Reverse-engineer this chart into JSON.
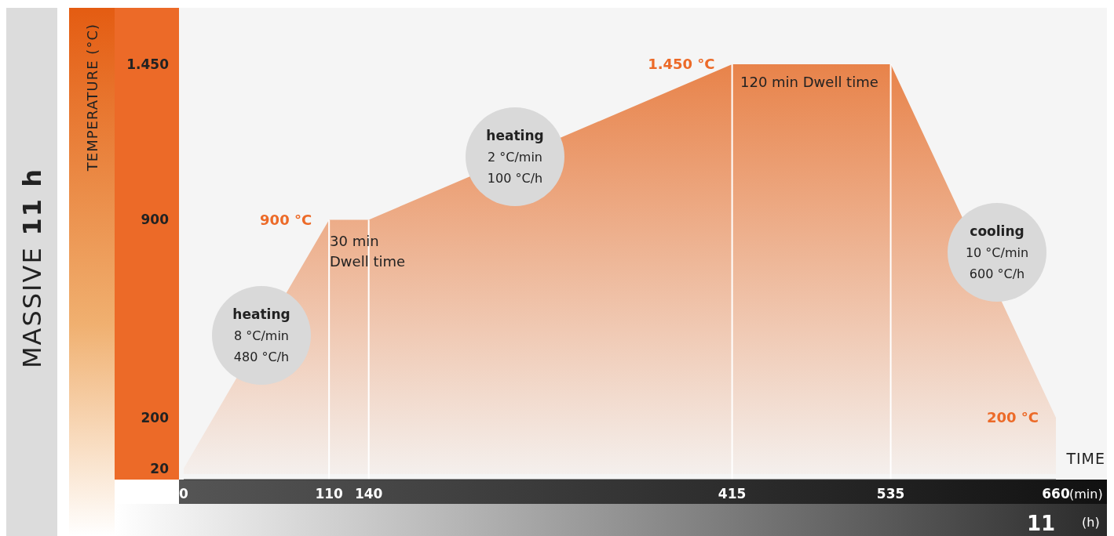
{
  "chart_data": {
    "type": "area",
    "title": "MASSIVE",
    "subtitle": "11 h",
    "ylabel": "TEMPERATURE (°C)",
    "xlabel": "TIME",
    "x": [
      0,
      110,
      140,
      415,
      535,
      660
    ],
    "series": [
      {
        "color": "#e8834a",
        "values": [
          20,
          900,
          900,
          1450,
          1450,
          200
        ]
      }
    ],
    "xlim": [
      0,
      660
    ],
    "xticks": [
      0,
      110,
      140,
      415,
      535,
      660
    ],
    "ylim": [
      0,
      1650
    ],
    "yticks": [
      20,
      200,
      900,
      {
        "value": 1450,
        "label": "1.450"
      }
    ],
    "ref_lines": [
      {
        "axis": "x",
        "value": 110,
        "color": "#ffffff"
      },
      {
        "axis": "x",
        "value": 140,
        "color": "#ffffff"
      },
      {
        "axis": "x",
        "value": 415,
        "color": "#ffffff"
      },
      {
        "axis": "x",
        "value": 535,
        "color": "#ffffff"
      }
    ],
    "annotations": [
      "(min)",
      "11",
      "(h)",
      "30 min\nDwell time",
      "120 min Dwell time",
      "heating\n8 °C/min\n480 °C/h",
      "heating\n2 °C/min\n100 °C/h",
      "cooling\n10 °C/min\n600 °C/h",
      {
        "text": "900 °C",
        "x": 110,
        "y": 900
      },
      {
        "text": "1.450 °C",
        "x": 415,
        "y": 1450
      },
      {
        "text": "200 °C",
        "x": 660,
        "y": 200
      }
    ]
  }
}
